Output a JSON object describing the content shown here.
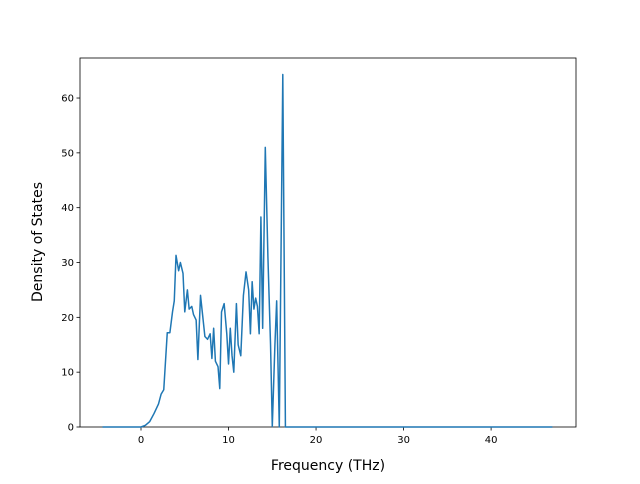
{
  "chart_data": {
    "type": "line",
    "x_label": "Frequency (THz)",
    "y_label": "Density of States",
    "x": [
      -4.4,
      0,
      0.5,
      1,
      1.5,
      2,
      2.3,
      2.6,
      3,
      3.3,
      3.6,
      3.8,
      4,
      4.3,
      4.5,
      4.8,
      5,
      5.3,
      5.5,
      5.8,
      6,
      6.3,
      6.5,
      6.8,
      7,
      7.3,
      7.6,
      7.9,
      8.1,
      8.3,
      8.5,
      8.8,
      9,
      9.2,
      9.5,
      9.8,
      10,
      10.2,
      10.4,
      10.6,
      10.9,
      11.1,
      11.4,
      11.7,
      12,
      12.3,
      12.5,
      12.7,
      12.9,
      13.1,
      13.3,
      13.5,
      13.7,
      13.9,
      14.2,
      14.5,
      14.8,
      15,
      15.3,
      15.5,
      15.8,
      16.2,
      16.5,
      20,
      30,
      40,
      47
    ],
    "series": [
      {
        "color": "#1f77b4",
        "values": [
          0,
          0,
          0.3,
          1,
          2.5,
          4.2,
          6,
          6.8,
          17.2,
          17.2,
          21,
          23,
          31.3,
          28.5,
          30,
          28,
          21,
          25,
          21.5,
          22,
          20.5,
          19.5,
          12.3,
          24,
          21,
          16.5,
          16,
          17,
          12.5,
          18,
          12,
          11,
          7,
          21,
          22.5,
          17,
          11.5,
          18,
          13,
          10,
          22.5,
          15,
          13,
          24,
          28.3,
          25,
          17,
          26.5,
          21.5,
          23.5,
          22,
          17,
          38.3,
          18,
          51,
          31,
          15,
          0.1,
          15,
          23,
          0,
          64.3,
          0,
          0,
          0,
          0,
          0
        ]
      }
    ],
    "xlim": [
      -6.97,
      49.7
    ],
    "ylim": [
      0,
      67.3
    ],
    "xticks": [
      0,
      10,
      20,
      30,
      40
    ],
    "yticks": [
      0,
      10,
      20,
      30,
      40,
      50,
      60
    ]
  }
}
